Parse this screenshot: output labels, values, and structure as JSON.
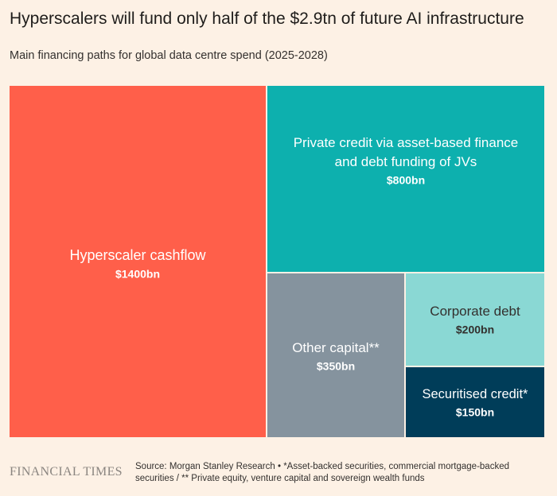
{
  "header": {
    "title": "Hyperscalers will fund only half of the $2.9tn of future AI infrastructure",
    "subtitle": "Main financing paths for global data centre spend (2025-2028)"
  },
  "footer": {
    "logo": "FINANCIAL TIMES",
    "source": "Source: Morgan Stanley Research • *Asset-backed securities, commercial mortgage-backed securities / ** Private equity, venture capital and sovereign wealth funds"
  },
  "chart_data": {
    "type": "treemap",
    "title": "Hyperscalers will fund only half of the $2.9tn of future AI infrastructure",
    "subtitle": "Main financing paths for global data centre spend (2025-2028)",
    "unit": "$bn",
    "total_label": "$2.9tn",
    "nodes": [
      {
        "id": "hyperscaler",
        "label_lines": [
          "Hyperscaler cashflow"
        ],
        "value": 1400,
        "value_label": "$1400bn",
        "color": "#FF5F4A",
        "text_color": "#FFFFFF"
      },
      {
        "id": "private-credit",
        "label_lines": [
          "Private credit via asset-based finance",
          "and debt funding of JVs"
        ],
        "value": 800,
        "value_label": "$800bn",
        "color": "#0DB0AE",
        "text_color": "#FFFFFF"
      },
      {
        "id": "other-capital",
        "label_lines": [
          "Other capital**"
        ],
        "value": 350,
        "value_label": "$350bn",
        "color": "#85939E",
        "text_color": "#FFFFFF"
      },
      {
        "id": "corporate-debt",
        "label_lines": [
          "Corporate debt"
        ],
        "value": 200,
        "value_label": "$200bn",
        "color": "#8AD8D4",
        "text_color": "#33302E"
      },
      {
        "id": "securitised-credit",
        "label_lines": [
          "Securitised credit*"
        ],
        "value": 150,
        "value_label": "$150bn",
        "color": "#003D59",
        "text_color": "#FFFFFF"
      }
    ]
  }
}
